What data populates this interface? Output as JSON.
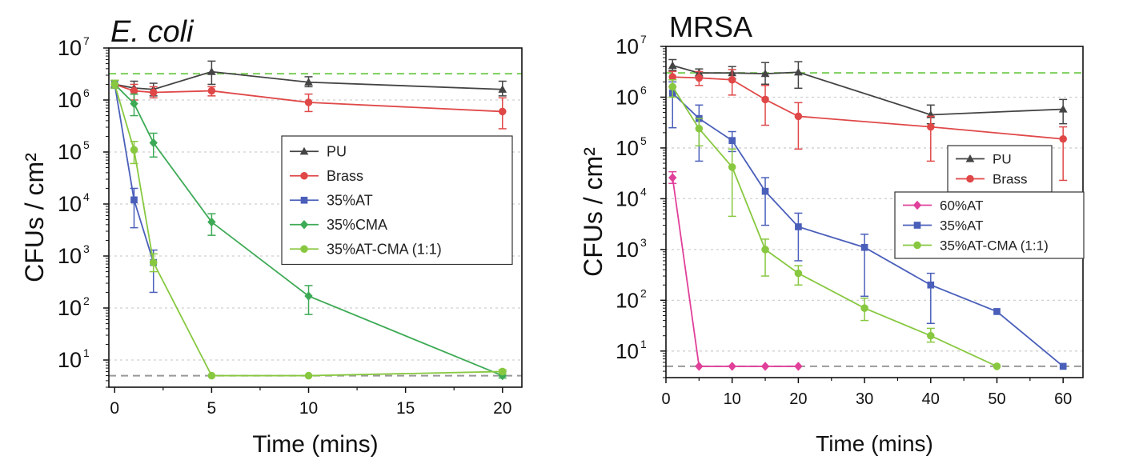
{
  "chart_data": [
    {
      "type": "line",
      "title": "E. coli",
      "title_style": "italic",
      "xlabel": "Time (mins)",
      "ylabel": "CFUs / cm²",
      "xlim": [
        -0.3,
        21
      ],
      "ylim": [
        3,
        10000000
      ],
      "yscale": "log",
      "x_ticks": [
        0,
        5,
        10,
        15,
        20
      ],
      "x_tick_labels": [
        "0",
        "5",
        "10",
        "15",
        "20"
      ],
      "y_tick_exponents": [
        1,
        2,
        3,
        4,
        5,
        6,
        7
      ],
      "grid": "horizontal dotted",
      "legend_position": "center-right",
      "reference_lines": [
        {
          "y": 3200000,
          "color": "#7ccf5a",
          "style": "dashed"
        },
        {
          "y": 5,
          "color": "#999999",
          "style": "dashed"
        }
      ],
      "series": [
        {
          "name": "PU",
          "marker": "triangle",
          "color": "#444444",
          "x": [
            0,
            1,
            2,
            5,
            10,
            20
          ],
          "y": [
            2000000,
            1700000,
            1600000,
            3500000,
            2200000,
            1600000
          ],
          "err_high": [
            2400000,
            2300000,
            2100000,
            5600000,
            2800000,
            2300000
          ],
          "err_low": [
            1700000,
            1300000,
            1200000,
            2000000,
            1800000,
            1200000
          ]
        },
        {
          "name": "Brass",
          "marker": "circle",
          "color": "#e04848",
          "x": [
            0,
            1,
            2,
            5,
            10,
            20
          ],
          "y": [
            2000000,
            1500000,
            1400000,
            1500000,
            900000,
            600000
          ],
          "err_high": [
            2400000,
            2000000,
            1800000,
            1800000,
            1300000,
            1100000
          ],
          "err_low": [
            1700000,
            1000000,
            1100000,
            1200000,
            600000,
            280000
          ]
        },
        {
          "name": "35%AT",
          "marker": "square",
          "color": "#4a5fba",
          "x": [
            0,
            1,
            2
          ],
          "y": [
            2000000,
            12000,
            750
          ],
          "err_high": [
            2400000,
            20000,
            1300
          ],
          "err_low": [
            1700000,
            3500,
            200
          ]
        },
        {
          "name": "35%CMA",
          "marker": "diamond",
          "color": "#3daa55",
          "x": [
            0,
            1,
            2,
            5,
            10,
            20
          ],
          "y": [
            2000000,
            850000,
            150000,
            4500,
            170,
            5
          ],
          "err_high": [
            2400000,
            1300000,
            230000,
            6500,
            270,
            6
          ],
          "err_low": [
            1700000,
            500000,
            80000,
            2500,
            75,
            4.5
          ]
        },
        {
          "name": "35%AT-CMA (1:1)",
          "marker": "circle",
          "color": "#88c840",
          "x": [
            0,
            1,
            2,
            5,
            10,
            20
          ],
          "y": [
            2000000,
            110000,
            750,
            5,
            5,
            6
          ],
          "err_high": [
            2400000,
            160000,
            1100,
            5,
            5,
            6.5
          ],
          "err_low": [
            1700000,
            60000,
            500,
            5,
            5,
            5.5
          ]
        }
      ]
    },
    {
      "type": "line",
      "title": "MRSA",
      "title_style": "normal",
      "xlabel": "Time (mins)",
      "ylabel": "CFUs / cm²",
      "xlim": [
        0,
        63
      ],
      "ylim": [
        3,
        10000000
      ],
      "yscale": "log",
      "x_ticks": [
        0,
        10,
        20,
        30,
        40,
        50,
        60
      ],
      "x_tick_labels": [
        "0",
        "10",
        "20",
        "30",
        "40",
        "50",
        "60"
      ],
      "y_tick_exponents": [
        1,
        2,
        3,
        4,
        5,
        6,
        7
      ],
      "grid": "horizontal dotted",
      "legend_position": "right (two groups)",
      "reference_lines": [
        {
          "y": 3000000,
          "color": "#7ccf5a",
          "style": "dashed"
        },
        {
          "y": 5,
          "color": "#999999",
          "style": "dashed"
        }
      ],
      "series": [
        {
          "name": "PU",
          "marker": "triangle",
          "color": "#444444",
          "x": [
            1,
            5,
            10,
            15,
            20,
            40,
            60
          ],
          "y": [
            4200000,
            3000000,
            3000000,
            2900000,
            3100000,
            450000,
            580000
          ],
          "err_high": [
            5500000,
            3600000,
            4000000,
            4800000,
            5000000,
            700000,
            900000
          ],
          "err_low": [
            3400000,
            2500000,
            2300000,
            1800000,
            1500000,
            300000,
            300000
          ]
        },
        {
          "name": "Brass",
          "marker": "circle",
          "color": "#e04848",
          "x": [
            1,
            5,
            10,
            15,
            20,
            40,
            60
          ],
          "y": [
            2500000,
            2400000,
            2200000,
            900000,
            420000,
            260000,
            150000
          ],
          "err_high": [
            3200000,
            3200000,
            3500000,
            1700000,
            780000,
            420000,
            260000
          ],
          "err_low": [
            1600000,
            1700000,
            1100000,
            280000,
            95000,
            55000,
            23000
          ]
        },
        {
          "name": "35%AT",
          "marker": "square",
          "color": "#4a5fba",
          "x": [
            1,
            5,
            10,
            15,
            20,
            30,
            40,
            50,
            60
          ],
          "y": [
            1200000,
            380000,
            140000,
            14000,
            2800,
            1100,
            200,
            60,
            5
          ],
          "err_high": [
            2000000,
            700000,
            210000,
            26000,
            5200,
            2000,
            340,
            60,
            5
          ],
          "err_low": [
            250000,
            55000,
            85000,
            3000,
            600,
            120,
            35,
            60,
            5
          ]
        },
        {
          "name": "60%AT",
          "marker": "diamond",
          "color": "#e0409a",
          "x": [
            1,
            5,
            10,
            15,
            20
          ],
          "y": [
            26000,
            5,
            5,
            5,
            5
          ],
          "err_high": [
            34000,
            5,
            5,
            5,
            5
          ],
          "err_low": [
            20000,
            5,
            5,
            5,
            5
          ]
        },
        {
          "name": "35%AT-CMA (1:1)",
          "marker": "circle",
          "color": "#88c840",
          "x": [
            1,
            5,
            10,
            15,
            20,
            30,
            40,
            50
          ],
          "y": [
            1600000,
            240000,
            42000,
            1000,
            340,
            70,
            20,
            5
          ],
          "err_high": [
            2200000,
            380000,
            95000,
            1600,
            480,
            110,
            28,
            5
          ],
          "err_low": [
            1000000,
            110000,
            4500,
            300,
            200,
            40,
            15,
            5
          ]
        }
      ]
    }
  ]
}
